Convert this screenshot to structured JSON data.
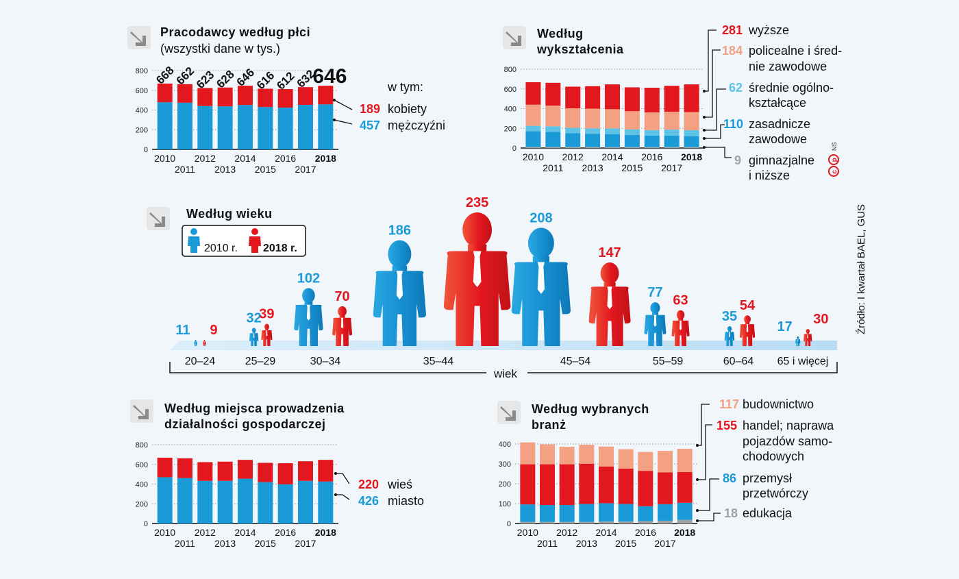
{
  "colors": {
    "red": "#e3171e",
    "blue": "#1a9ad6",
    "salmon": "#f3a083",
    "lightblue": "#5fc3e6",
    "grey": "#a2a2a2",
    "dark": "#111111",
    "arrow": "#8a8a8a"
  },
  "source": "Źródło: I kwartał BAEL, GUS",
  "logo": "NS",
  "chart_data": [
    {
      "id": "gender",
      "type": "bar",
      "title": "Pracodawcy według płci",
      "subtitle": "(wszystki dane w tys.)",
      "categories": [
        "2010",
        "2011",
        "2012",
        "2013",
        "2014",
        "2015",
        "2016",
        "2017",
        "2018"
      ],
      "totals": [
        "668",
        "662",
        "623",
        "628",
        "646",
        "616",
        "612",
        "632",
        "646"
      ],
      "series": [
        {
          "name": "mężczyźni",
          "color": "#1a9ad6",
          "values": [
            479,
            474,
            440,
            437,
            451,
            430,
            424,
            452,
            457
          ]
        },
        {
          "name": "kobiety",
          "color": "#e3171e",
          "values": [
            189,
            188,
            183,
            191,
            195,
            186,
            188,
            180,
            189
          ]
        }
      ],
      "ylim": [
        0,
        800
      ],
      "yticks": [
        "0",
        "200",
        "400",
        "600",
        "800"
      ],
      "legend_header": "w tym:",
      "legend": [
        {
          "value": "189",
          "label": "kobiety",
          "color": "red"
        },
        {
          "value": "457",
          "label": "mężczyźni",
          "color": "blue"
        }
      ]
    },
    {
      "id": "education",
      "type": "bar",
      "title_line1": "Według",
      "title_line2": "wykształcenia",
      "categories": [
        "2010",
        "2011",
        "2012",
        "2013",
        "2014",
        "2015",
        "2016",
        "2017",
        "2018"
      ],
      "series": [
        {
          "name": "gimnazjalne i niższe",
          "color": "#a2a2a2",
          "values": [
            10,
            10,
            10,
            10,
            9,
            9,
            9,
            9,
            9
          ]
        },
        {
          "name": "zasadnicze zawodowe",
          "color": "#1a9ad6",
          "values": [
            160,
            155,
            140,
            135,
            132,
            125,
            118,
            118,
            110
          ]
        },
        {
          "name": "średnie ogólnokształcące",
          "color": "#5fc3e6",
          "values": [
            55,
            55,
            55,
            55,
            58,
            55,
            55,
            60,
            62
          ]
        },
        {
          "name": "policealne i średnie zawodowe",
          "color": "#f3a083",
          "values": [
            215,
            210,
            198,
            200,
            195,
            185,
            180,
            180,
            184
          ]
        },
        {
          "name": "wyższe",
          "color": "#e3171e",
          "values": [
            228,
            232,
            220,
            228,
            252,
            242,
            250,
            265,
            281
          ]
        }
      ],
      "ylim": [
        0,
        800
      ],
      "yticks": [
        "0",
        "200",
        "400",
        "600",
        "800"
      ],
      "legend": [
        {
          "value": "281",
          "label1": "wyższe",
          "label2": "",
          "color": "red"
        },
        {
          "value": "184",
          "label1": "policealne i śred-",
          "label2": "nie zawodowe",
          "color": "salmon"
        },
        {
          "value": "62",
          "label1": "średnie ogólno-",
          "label2": "kształcące",
          "color": "lightblue"
        },
        {
          "value": "110",
          "label1": "zasadnicze",
          "label2": "zawodowe",
          "color": "blue"
        },
        {
          "value": "9",
          "label1": "gimnazjalne",
          "label2": "i niższe",
          "color": "grey"
        }
      ]
    },
    {
      "id": "age",
      "type": "bar",
      "title": "Według wieku",
      "axis_label": "wiek",
      "legend": [
        {
          "label": "2010 r.",
          "color": "blue"
        },
        {
          "label": "2018 r.",
          "color": "red"
        }
      ],
      "categories": [
        "20–24",
        "25–29",
        "30–34",
        "35–44",
        "45–54",
        "55–59",
        "60–64",
        "65 i więcej"
      ],
      "series": [
        {
          "name": "2010 r.",
          "color": "#1a9ad6",
          "values": [
            11,
            32,
            102,
            186,
            208,
            77,
            35,
            17
          ]
        },
        {
          "name": "2018 r.",
          "color": "#e3171e",
          "values": [
            9,
            39,
            70,
            235,
            147,
            63,
            54,
            30
          ]
        }
      ]
    },
    {
      "id": "place",
      "type": "bar",
      "title_line1": "Według miejsca prowadzenia",
      "title_line2": "działalności gospodarczej",
      "categories": [
        "2010",
        "2011",
        "2012",
        "2013",
        "2014",
        "2015",
        "2016",
        "2017",
        "2018"
      ],
      "series": [
        {
          "name": "miasto",
          "color": "#1a9ad6",
          "values": [
            470,
            462,
            433,
            433,
            455,
            420,
            398,
            433,
            426
          ]
        },
        {
          "name": "wieś",
          "color": "#e3171e",
          "values": [
            198,
            200,
            190,
            195,
            191,
            196,
            214,
            199,
            220
          ]
        }
      ],
      "ylim": [
        0,
        800
      ],
      "yticks": [
        "0",
        "200",
        "400",
        "600",
        "800"
      ],
      "legend": [
        {
          "value": "220",
          "label": "wieś",
          "color": "red"
        },
        {
          "value": "426",
          "label": "miasto",
          "color": "blue"
        }
      ]
    },
    {
      "id": "industry",
      "type": "bar",
      "title_line1": "Według wybranych",
      "title_line2": "branż",
      "categories": [
        "2010",
        "2011",
        "2012",
        "2013",
        "2014",
        "2015",
        "2016",
        "2017",
        "2018"
      ],
      "series": [
        {
          "name": "edukacja",
          "color": "#a2a2a2",
          "values": [
            8,
            8,
            8,
            8,
            10,
            10,
            12,
            14,
            18
          ]
        },
        {
          "name": "przemysł przetwórczy",
          "color": "#1a9ad6",
          "values": [
            88,
            85,
            85,
            90,
            92,
            88,
            75,
            83,
            86
          ]
        },
        {
          "name": "handel; naprawa pojazdów samochodowych",
          "color": "#e3171e",
          "values": [
            202,
            205,
            205,
            203,
            185,
            178,
            178,
            160,
            155
          ]
        },
        {
          "name": "budownictwo",
          "color": "#f3a083",
          "values": [
            110,
            100,
            88,
            95,
            100,
            98,
            95,
            108,
            117
          ]
        }
      ],
      "ylim": [
        0,
        400
      ],
      "yticks": [
        "0",
        "100",
        "200",
        "300",
        "400"
      ],
      "legend": [
        {
          "value": "117",
          "lines": [
            "budownictwo"
          ],
          "color": "salmon"
        },
        {
          "value": "155",
          "lines": [
            "handel; naprawa",
            "pojazdów samo-",
            "chodowych"
          ],
          "color": "red"
        },
        {
          "value": "86",
          "lines": [
            "przemysł",
            "przetwórczy"
          ],
          "color": "blue"
        },
        {
          "value": "18",
          "lines": [
            "edukacja"
          ],
          "color": "grey"
        }
      ]
    }
  ]
}
